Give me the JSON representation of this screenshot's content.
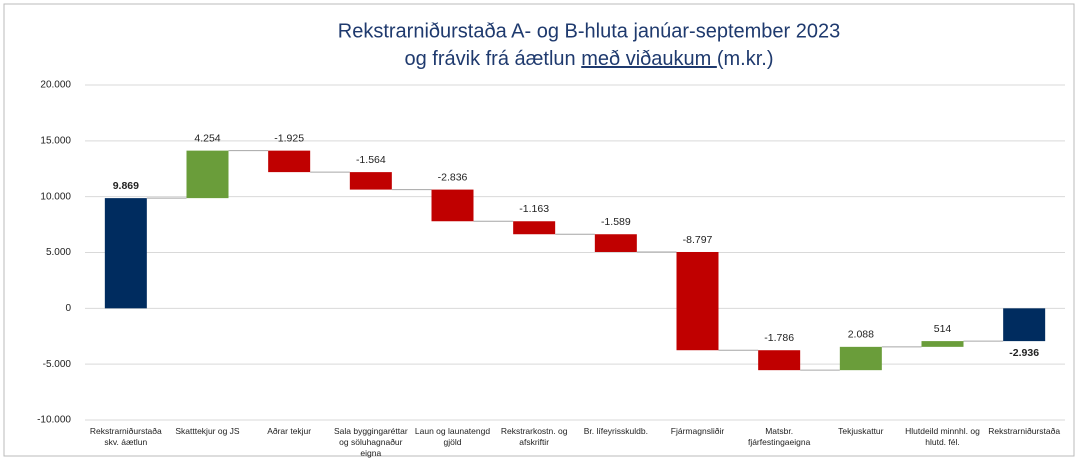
{
  "chart_data": {
    "type": "waterfall",
    "title": {
      "line1": "Rekstrarniðurstaða A- og B-hluta janúar-september 2023",
      "line2_start": "og frávik frá áætlun ",
      "line2_underlined": "með viðaukum ",
      "line2_end": "(m.kr.)"
    },
    "categories": [
      "Rekstrarniðurstaða skv. áætlun",
      "Skatttekjur og JS",
      "Aðrar tekjur",
      "Sala byggingaréttar og söluhagnaður eigna",
      "Laun og launatengd gjöld",
      "Rekstrarkostn. og afskriftir",
      "Br. lífeyrisskuldb.",
      "Fjármagnsliðir",
      "Matsbr. fjárfestingaeigna",
      "Tekjuskattur",
      "Hlutdeild minnhl. og hlutd. fél.",
      "Rekstrarniðurstaða"
    ],
    "values": [
      9869,
      4254,
      -1925,
      -1564,
      -2836,
      -1163,
      -1589,
      -8797,
      -1786,
      2088,
      514,
      -2936
    ],
    "value_labels": [
      "9.869",
      "4.254",
      "-1.925",
      "-1.564",
      "-2.836",
      "-1.163",
      "-1.589",
      "-8.797",
      "-1.786",
      "2.088",
      "514",
      "-2.936"
    ],
    "total_color": "#002c5f",
    "increase_color": "#6a9d3a",
    "decrease_color": "#c00000",
    "ylim": [
      -10000,
      20000
    ],
    "yticks": [
      {
        "value": -10000,
        "label": "-10.000"
      },
      {
        "value": -5000,
        "label": "-5.000"
      },
      0,
      {
        "value": 5000,
        "label": "5.000"
      },
      {
        "value": 10000,
        "label": "10.000"
      },
      {
        "value": 15000,
        "label": "15.000"
      },
      {
        "value": 20000,
        "label": "20.000"
      }
    ],
    "grid": true
  }
}
